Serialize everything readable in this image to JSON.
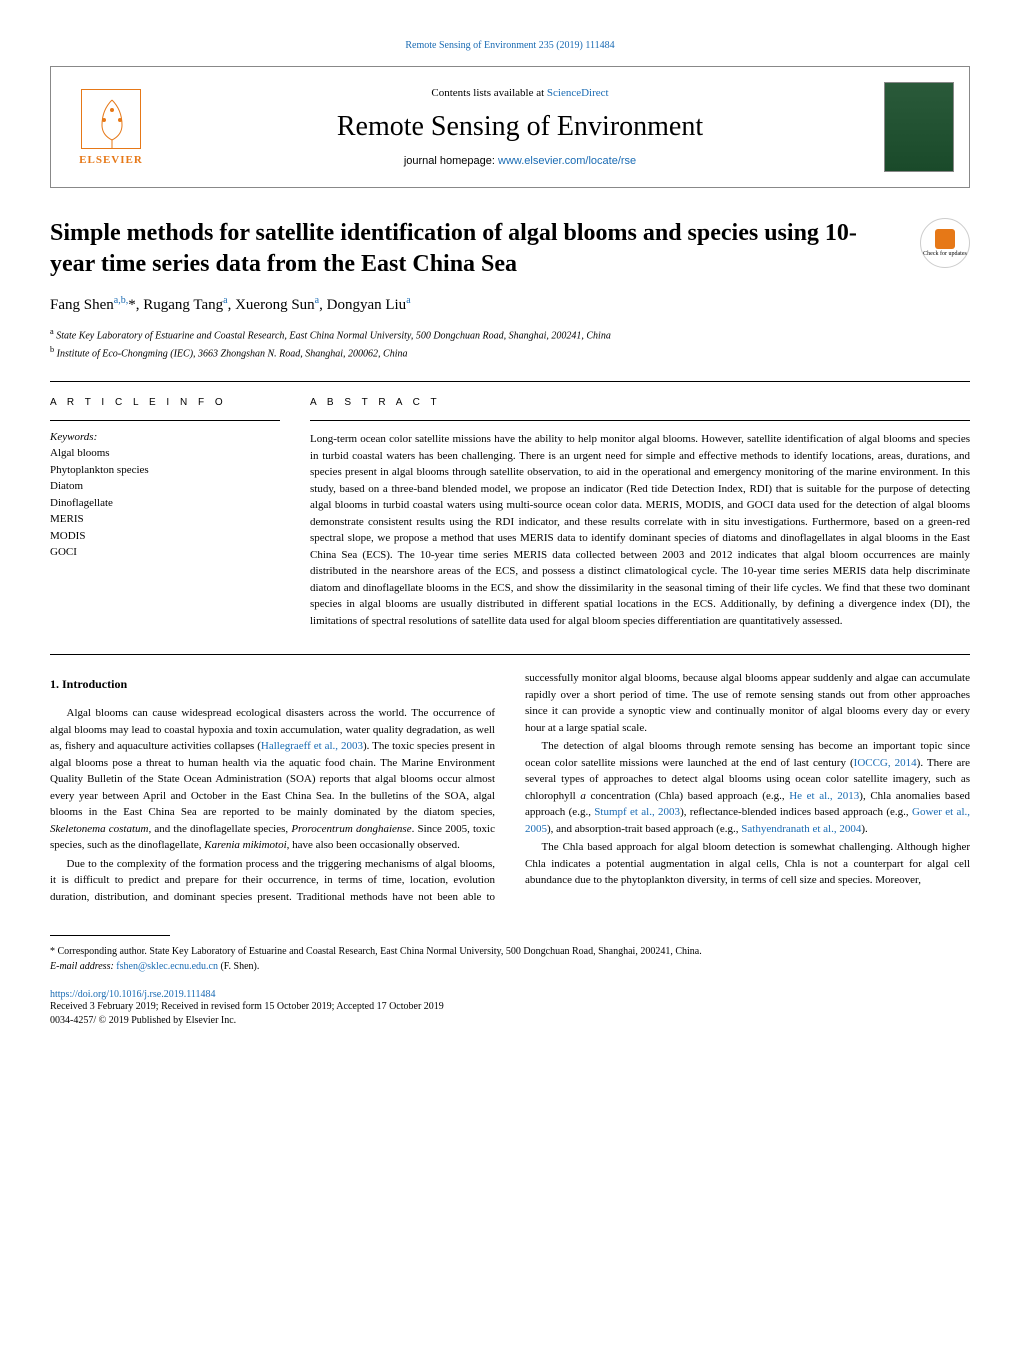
{
  "header": {
    "journal_ref": "Remote Sensing of Environment 235 (2019) 111484",
    "contents_text": "Contents lists available at ",
    "contents_link": "ScienceDirect",
    "journal_title": "Remote Sensing of Environment",
    "homepage_text": "journal homepage: ",
    "homepage_link": "www.elsevier.com/locate/rse",
    "elsevier_text": "ELSEVIER"
  },
  "article": {
    "title": "Simple methods for satellite identification of algal blooms and species using 10-year time series data from the East China Sea",
    "check_updates": "Check for updates",
    "authors_html": "Fang Shen<sup>a,b,</sup>*, Rugang Tang<sup>a</sup>, Xuerong Sun<sup>a</sup>, Dongyan Liu<sup>a</sup>",
    "affiliations": [
      "a State Key Laboratory of Estuarine and Coastal Research, East China Normal University, 500 Dongchuan Road, Shanghai, 200241, China",
      "b Institute of Eco-Chongming (IEC), 3663 Zhongshan N. Road, Shanghai, 200062, China"
    ]
  },
  "info": {
    "section_label": "A R T I C L E  I N F O",
    "keywords_label": "Keywords:",
    "keywords": [
      "Algal blooms",
      "Phytoplankton species",
      "Diatom",
      "Dinoflagellate",
      "MERIS",
      "MODIS",
      "GOCI"
    ]
  },
  "abstract": {
    "section_label": "A B S T R A C T",
    "text": "Long-term ocean color satellite missions have the ability to help monitor algal blooms. However, satellite identification of algal blooms and species in turbid coastal waters has been challenging. There is an urgent need for simple and effective methods to identify locations, areas, durations, and species present in algal blooms through satellite observation, to aid in the operational and emergency monitoring of the marine environment. In this study, based on a three-band blended model, we propose an indicator (Red tide Detection Index, RDI) that is suitable for the purpose of detecting algal blooms in turbid coastal waters using multi-source ocean color data. MERIS, MODIS, and GOCI data used for the detection of algal blooms demonstrate consistent results using the RDI indicator, and these results correlate with in situ investigations. Furthermore, based on a green-red spectral slope, we propose a method that uses MERIS data to identify dominant species of diatoms and dinoflagellates in algal blooms in the East China Sea (ECS). The 10-year time series MERIS data collected between 2003 and 2012 indicates that algal bloom occurrences are mainly distributed in the nearshore areas of the ECS, and possess a distinct climatological cycle. The 10-year time series MERIS data help discriminate diatom and dinoflagellate blooms in the ECS, and show the dissimilarity in the seasonal timing of their life cycles. We find that these two dominant species in algal blooms are usually distributed in different spatial locations in the ECS. Additionally, by defining a divergence index (DI), the limitations of spectral resolutions of satellite data used for algal bloom species differentiation are quantitatively assessed."
  },
  "body": {
    "section_heading": "1. Introduction",
    "paragraphs": [
      "Algal blooms can cause widespread ecological disasters across the world. The occurrence of algal blooms may lead to coastal hypoxia and toxin accumulation, water quality degradation, as well as, fishery and aquaculture activities collapses (<span class=\"citation-link\">Hallegraeff et al., 2003</span>). The toxic species present in algal blooms pose a threat to human health via the aquatic food chain. The Marine Environment Quality Bulletin of the State Ocean Administration (SOA) reports that algal blooms occur almost every year between April and October in the East China Sea. In the bulletins of the SOA, algal blooms in the East China Sea are reported to be mainly dominated by the diatom species, <span class=\"italic\">Skeletonema costatum,</span> and the dinoflagellate species, <span class=\"italic\">Prorocentrum donghaiense</span>. Since 2005, toxic species, such as the dinoflagellate, <span class=\"italic\">Karenia mikimotoi,</span> have also been occasionally observed.",
      "Due to the complexity of the formation process and the triggering mechanisms of algal blooms, it is difficult to predict and prepare for their occurrence, in terms of time, location, evolution duration, distribution, and dominant species present. Traditional methods have not been able to successfully monitor algal blooms, because algal blooms appear suddenly and algae can accumulate rapidly over a short period of time. The use of remote sensing stands out from other approaches since it can provide a synoptic view and continually monitor of algal blooms every day or every hour at a large spatial scale.",
      "The detection of algal blooms through remote sensing has become an important topic since ocean color satellite missions were launched at the end of last century (<span class=\"citation-link\">IOCCG, 2014</span>). There are several types of approaches to detect algal blooms using ocean color satellite imagery, such as chlorophyll <span class=\"italic\">a</span> concentration (Chla) based approach (e.g., <span class=\"citation-link\">He et al., 2013</span>), Chla anomalies based approach (e.g., <span class=\"citation-link\">Stumpf et al., 2003</span>), reflectance-blended indices based approach (e.g., <span class=\"citation-link\">Gower et al., 2005</span>), and absorption-trait based approach (e.g., <span class=\"citation-link\">Sathyendranath et al., 2004</span>).",
      "The Chla based approach for algal bloom detection is somewhat challenging. Although higher Chla indicates a potential augmentation in algal cells, Chla is not a counterpart for algal cell abundance due to the phytoplankton diversity, in terms of cell size and species. Moreover,"
    ]
  },
  "footer": {
    "corresponding": "* Corresponding author. State Key Laboratory of Estuarine and Coastal Research, East China Normal University, 500 Dongchuan Road, Shanghai, 200241, China.",
    "email_label": "E-mail address: ",
    "email": "fshen@sklec.ecnu.edu.cn",
    "email_after": " (F. Shen).",
    "doi": "https://doi.org/10.1016/j.rse.2019.111484",
    "received": "Received 3 February 2019; Received in revised form 15 October 2019; Accepted 17 October 2019",
    "issn": "0034-4257/ © 2019 Published by Elsevier Inc."
  },
  "colors": {
    "link": "#1a6bb3",
    "elsevier_orange": "#e67817",
    "text": "#000000",
    "background": "#ffffff"
  }
}
